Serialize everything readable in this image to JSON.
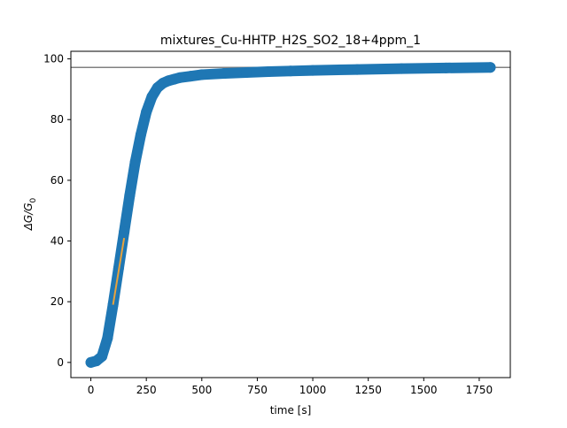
{
  "chart_data": {
    "type": "scatter",
    "title": "mixtures_Cu-HHTP_H2S_SO2_18+4ppm_1",
    "xlabel": "time [s]",
    "ylabel": "ΔG/G",
    "ylabel_subscript": "0",
    "xlim": [
      -90,
      1890
    ],
    "ylim": [
      -5,
      102.5
    ],
    "xticks": [
      0,
      250,
      500,
      750,
      1000,
      1250,
      1500,
      1750
    ],
    "yticks": [
      0,
      20,
      40,
      60,
      80,
      100
    ],
    "grid": false,
    "series": [
      {
        "color": "#1f77b4",
        "style": "points",
        "x": [
          0,
          25,
          50,
          75,
          100,
          125,
          150,
          175,
          200,
          225,
          250,
          275,
          300,
          325,
          350,
          375,
          400,
          450,
          500,
          600,
          700,
          800,
          900,
          1000,
          1200,
          1400,
          1600,
          1800
        ],
        "y": [
          0,
          0.5,
          2,
          8,
          19,
          31,
          43,
          55,
          66,
          75,
          82.5,
          87.5,
          90.5,
          92,
          92.8,
          93.3,
          93.8,
          94.3,
          94.8,
          95.2,
          95.5,
          95.8,
          96,
          96.2,
          96.5,
          96.8,
          97,
          97.2
        ]
      },
      {
        "color": "#e8a33d",
        "style": "line",
        "x": [
          100,
          150
        ],
        "y": [
          19,
          41
        ]
      }
    ],
    "reference_lines": [
      {
        "orientation": "horizontal",
        "y": 97.2,
        "color": "#808080"
      }
    ],
    "colors": {
      "points": "#1f77b4",
      "fit_line": "#e8a33d",
      "reference_line": "#808080"
    }
  }
}
